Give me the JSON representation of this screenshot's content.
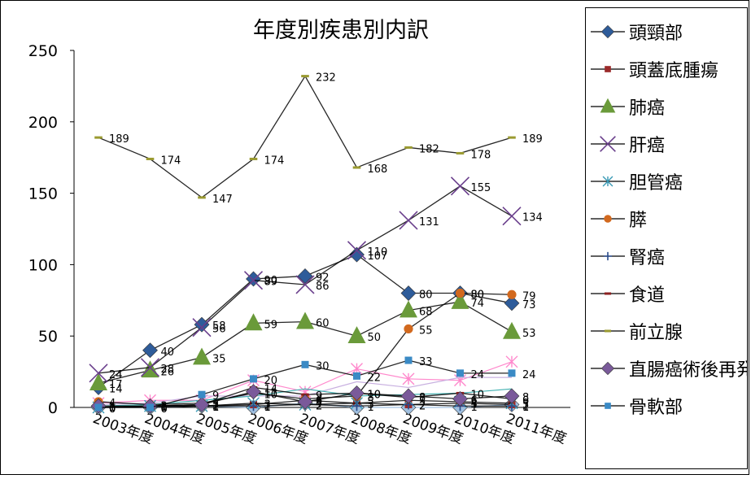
{
  "chart_data": {
    "type": "line",
    "title": "年度別疾患別内訳",
    "xlabel": "",
    "ylabel": "",
    "ylim": [
      0,
      250
    ],
    "yticks": [
      0,
      50,
      100,
      150,
      200,
      250
    ],
    "grid": false,
    "legend_position": "right",
    "categories": [
      "2003年度",
      "2004年度",
      "2005年度",
      "2006年度",
      "2007年度",
      "2008年度",
      "2009年度",
      "2010年度",
      "2011年度"
    ],
    "series": [
      {
        "name": "頭頸部",
        "color": "#2e5c9a",
        "marker": "diamond",
        "values": [
          14,
          40,
          58,
          90,
          92,
          107,
          80,
          80,
          73
        ]
      },
      {
        "name": "頭蓋底腫瘍",
        "color": "#9b2a2a",
        "marker": "square",
        "values": [
          0,
          1,
          1,
          2,
          5,
          3,
          2,
          3,
          2
        ]
      },
      {
        "name": "肺癌",
        "color": "#6a9a3a",
        "marker": "triangle",
        "values": [
          17,
          26,
          35,
          59,
          60,
          50,
          68,
          74,
          53
        ]
      },
      {
        "name": "肝癌",
        "color": "#6a3f8c",
        "marker": "x",
        "values": [
          24,
          28,
          56,
          89,
          86,
          110,
          131,
          155,
          134
        ]
      },
      {
        "name": "胆管癌",
        "color": "#3a9ab5",
        "marker": "asterisk",
        "values": [
          0,
          1,
          1,
          3,
          2,
          3,
          5,
          4,
          3
        ]
      },
      {
        "name": "膵",
        "color": "#d2691e",
        "marker": "circle",
        "values": [
          4,
          2,
          3,
          10,
          6,
          8,
          55,
          80,
          79
        ]
      },
      {
        "name": "腎癌",
        "color": "#2b4c8c",
        "marker": "plus",
        "values": [
          0,
          0,
          1,
          1,
          2,
          1,
          2,
          1,
          1
        ]
      },
      {
        "name": "食道",
        "color": "#8b2020",
        "marker": "dash",
        "values": [
          0,
          1,
          2,
          14,
          9,
          10,
          7,
          10,
          6
        ]
      },
      {
        "name": "前立腺",
        "color": "#9a9a30",
        "marker": "dash",
        "values": [
          189,
          174,
          147,
          174,
          232,
          168,
          182,
          178,
          189
        ]
      },
      {
        "name": "直腸癌術後再発",
        "color": "#7a5a9a",
        "marker": "diamond",
        "values": [
          1,
          1,
          2,
          11,
          4,
          10,
          8,
          6,
          8
        ]
      },
      {
        "name": "骨軟部",
        "color": "#3a8ac5",
        "marker": "square",
        "values": [
          0,
          0,
          9,
          20,
          30,
          22,
          33,
          24,
          24
        ]
      }
    ],
    "extra_series": [
      {
        "color": "#ff88cc",
        "marker": "asterisk",
        "values": [
          3,
          5,
          5,
          19,
          11,
          27,
          20,
          19,
          32
        ]
      },
      {
        "color": "#c8b0e0",
        "marker": "none",
        "values": [
          2,
          3,
          8,
          8,
          8,
          18,
          14,
          21,
          21
        ]
      },
      {
        "color": "#a0c0e0",
        "marker": "diamond",
        "values": [
          0,
          0,
          1,
          0,
          3,
          0,
          0,
          0,
          2
        ]
      },
      {
        "color": "#40b0b0",
        "marker": "none",
        "values": [
          1,
          2,
          5,
          8,
          13,
          8,
          9,
          10,
          13
        ]
      }
    ]
  }
}
